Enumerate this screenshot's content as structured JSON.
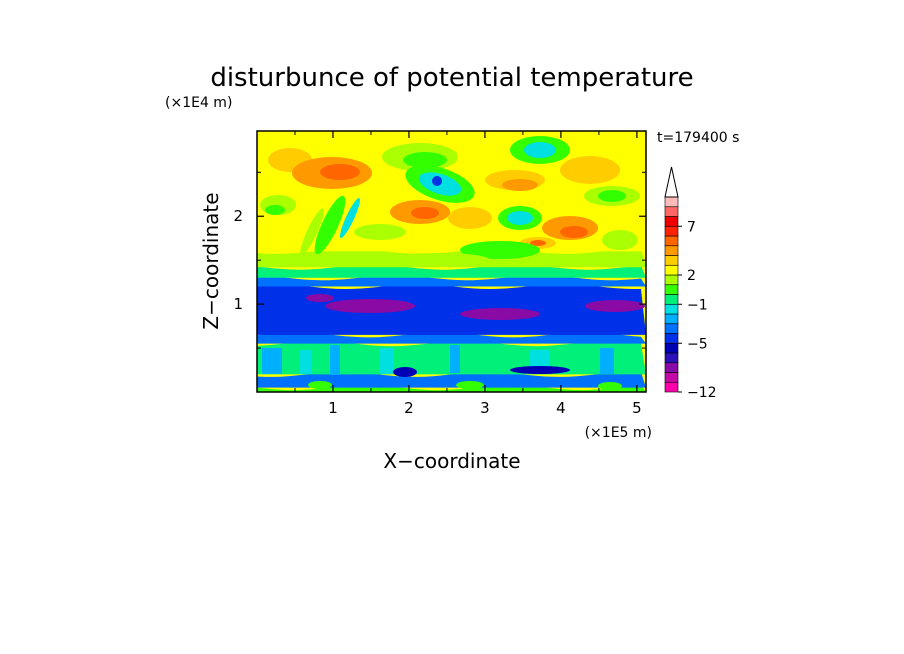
{
  "chart_data": {
    "type": "heatmap",
    "title": "disturbunce of potential temperature",
    "xlabel": "X−coordinate",
    "ylabel": "Z−coordinate",
    "x_unit": "(×1E5 m)",
    "y_unit": "(×1E4 m)",
    "time_label": "t=179400 s",
    "xlim": [
      0,
      5.12
    ],
    "ylim": [
      0,
      2.97
    ],
    "x_ticks": [
      1,
      2,
      3,
      4,
      5
    ],
    "y_ticks": [
      1,
      2
    ],
    "x_tick_labels": [
      "1",
      "2",
      "3",
      "4",
      "5"
    ],
    "y_tick_labels": [
      "1",
      "2"
    ],
    "colorbar": {
      "levels": [
        -12,
        -10,
        -8,
        -7,
        -6,
        -5,
        -4,
        -3,
        -2,
        -1,
        0,
        1,
        2,
        3,
        4,
        5,
        6,
        7,
        8,
        9
      ],
      "labels": [
        "−12",
        "−5",
        "−1",
        "2",
        "7"
      ],
      "label_values": [
        -12,
        -5,
        -1,
        2,
        7
      ],
      "colors": [
        "#ff00aa",
        "#c40aa6",
        "#8a0aa6",
        "#2a12b8",
        "#0000b5",
        "#0030e8",
        "#0070ff",
        "#00b0ff",
        "#00e0e0",
        "#00f07a",
        "#33ff00",
        "#aaff00",
        "#ffff00",
        "#ffcc00",
        "#ff9900",
        "#ff6600",
        "#ff2200",
        "#ee0000",
        "#ff6666",
        "#ffbbbb"
      ],
      "extend": "max"
    },
    "layers": [
      {
        "z": [
          0,
          0.05
        ],
        "value": 0
      },
      {
        "z": [
          0.05,
          0.2
        ],
        "value": -4
      },
      {
        "z": [
          0.2,
          0.55
        ],
        "value": -1
      },
      {
        "z": [
          0.55,
          0.65
        ],
        "value": -4
      },
      {
        "z": [
          0.65,
          1.2
        ],
        "value": -5
      },
      {
        "z": [
          1.2,
          1.3
        ],
        "value": -4
      },
      {
        "z": [
          1.3,
          1.42
        ],
        "value": -1
      },
      {
        "z": [
          1.42,
          1.6
        ],
        "value": 1
      },
      {
        "z": [
          1.6,
          2.97
        ],
        "value": 2
      }
    ]
  }
}
